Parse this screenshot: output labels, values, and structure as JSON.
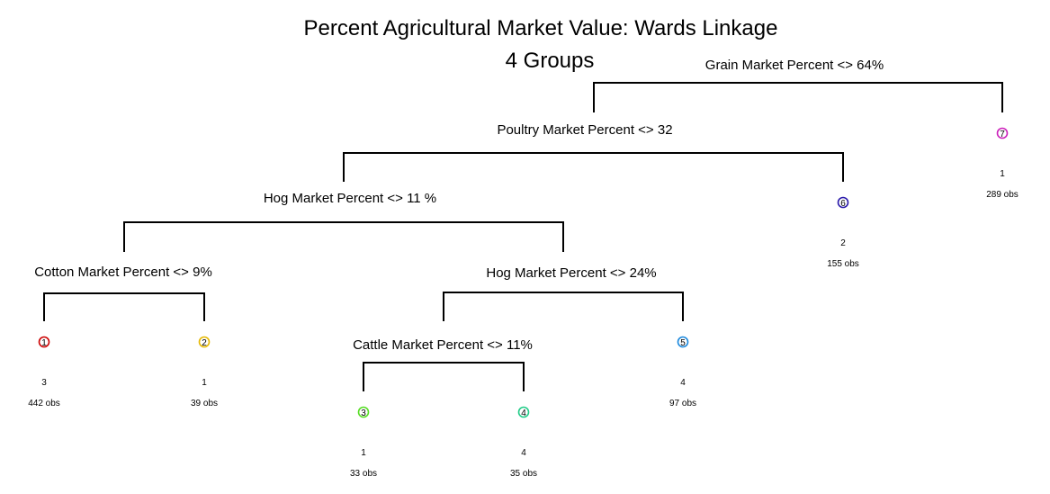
{
  "title": {
    "line1": "Percent Agricultural Market Value: Wards Linkage",
    "line2": "4 Groups"
  },
  "splits": [
    "Grain Market Percent <> 64%",
    "Poultry Market Percent <> 32",
    "Hog Market Percent <> 11 %",
    "Cotton Market Percent <> 9%",
    "Hog Market Percent <> 24%",
    "Cattle Market Percent <> 11%"
  ],
  "leaves": [
    {
      "node": "1",
      "group": "3",
      "obs": "442 obs",
      "color": "#cc0000"
    },
    {
      "node": "2",
      "group": "1",
      "obs": "39 obs",
      "color": "#e6b800"
    },
    {
      "node": "3",
      "group": "1",
      "obs": "33 obs",
      "color": "#55dd22"
    },
    {
      "node": "4",
      "group": "4",
      "obs": "35 obs",
      "color": "#22cc88"
    },
    {
      "node": "5",
      "group": "4",
      "obs": "97 obs",
      "color": "#1a88dd"
    },
    {
      "node": "6",
      "group": "2",
      "obs": "155 obs",
      "color": "#2a1aaa"
    },
    {
      "node": "7",
      "group": "1",
      "obs": "289 obs",
      "color": "#cc22bb"
    }
  ]
}
